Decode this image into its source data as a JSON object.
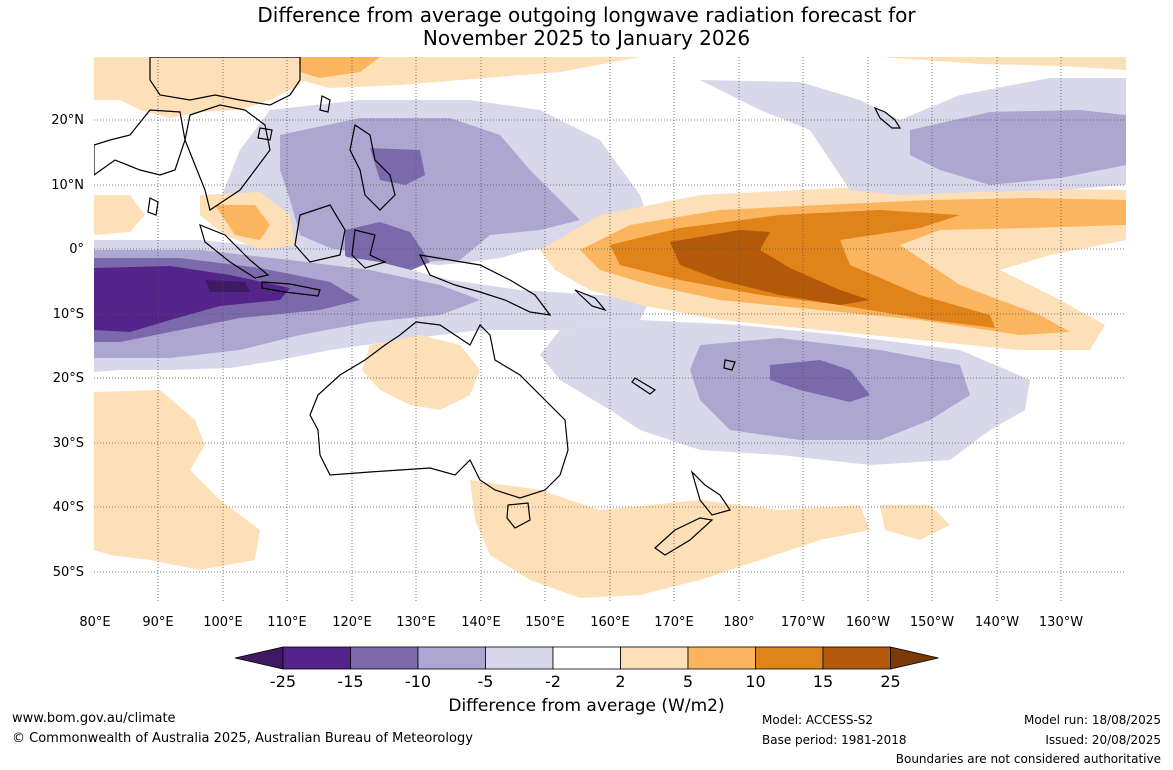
{
  "title_line1": "Difference from average outgoing longwave radiation forecast for",
  "title_line2": "November 2025 to January 2026",
  "map": {
    "lat_labels": [
      "20°N",
      "10°N",
      "0°",
      "10°S",
      "20°S",
      "30°S",
      "40°S",
      "50°S"
    ],
    "lon_labels": [
      "80°E",
      "90°E",
      "100°E",
      "110°E",
      "120°E",
      "130°E",
      "140°E",
      "150°E",
      "160°E",
      "170°E",
      "180°",
      "170°W",
      "160°W",
      "150°W",
      "140°W",
      "130°W"
    ]
  },
  "colorbar": {
    "title": "Difference from average (W/m2)",
    "tick_labels": [
      "-25",
      "-15",
      "-10",
      "-5",
      "-2",
      "2",
      "5",
      "10",
      "15",
      "25"
    ],
    "colors": [
      "#3d1a63",
      "#55248a",
      "#7b6aab",
      "#aca6d0",
      "#d8d8ea",
      "#ffffff",
      "#fde0b8",
      "#fbb55f",
      "#e08318",
      "#b25a0a",
      "#7a3a06"
    ]
  },
  "footer": {
    "website": "www.bom.gov.au/climate",
    "copyright": "© Commonwealth of Australia 2025, Australian Bureau of Meteorology",
    "model": "Model: ACCESS-S2",
    "base_period": "Base period: 1981-2018",
    "model_run": "Model run: 18/08/2025",
    "issued": "Issued: 20/08/2025",
    "boundaries": "Boundaries are not considered authoritative"
  }
}
